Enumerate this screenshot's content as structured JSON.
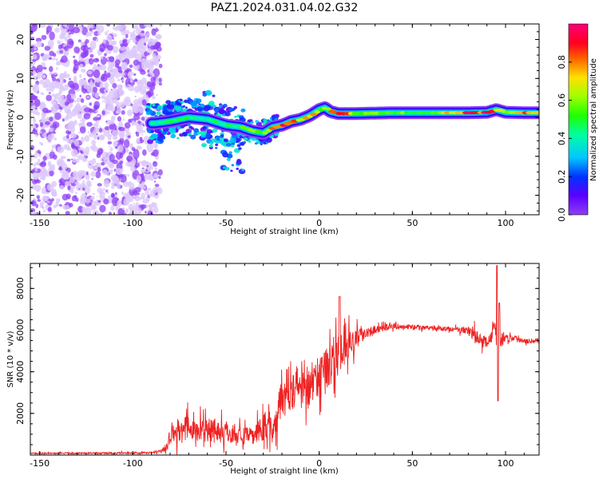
{
  "title": "PAZ1.2024.031.04.02.G32",
  "colors": {
    "snr_line": "#ee2222",
    "scatter_point": "#8f3ff5",
    "scatter_faint": "#dcc8fb",
    "frame": "#000000"
  },
  "chart_data": [
    {
      "type": "heatmap",
      "xlabel": "Height of straight line (km)",
      "ylabel": "Frequency (Hz)",
      "xlim": [
        -155,
        118
      ],
      "ylim": [
        -25,
        24
      ],
      "xticks": [
        -150,
        -100,
        -50,
        0,
        50,
        100
      ],
      "yticks": [
        -20,
        -10,
        0,
        10,
        20
      ],
      "colorbar": {
        "label": "Normalized spectral amplitude",
        "range": [
          0,
          1
        ],
        "ticks": [
          "0.0",
          "0.2",
          "0.4",
          "0.6",
          "0.8"
        ],
        "tick_values": [
          0.0,
          0.2,
          0.4,
          0.6,
          0.8
        ],
        "colormap": "gist_rainbow_r"
      },
      "ridge": {
        "x": [
          -88,
          -80,
          -70,
          -60,
          -50,
          -42,
          -36,
          -30,
          -25,
          -20,
          -15,
          -10,
          -5,
          0,
          3,
          6,
          10,
          20,
          40,
          60,
          80,
          90,
          95,
          100,
          110,
          118
        ],
        "frequency": [
          -1.5,
          -1.0,
          0.0,
          -0.5,
          -2.0,
          -2.5,
          -3.5,
          -4.0,
          -2.5,
          -2.0,
          -1.0,
          -0.5,
          0.5,
          2.0,
          2.5,
          1.5,
          1.0,
          1.0,
          1.2,
          1.2,
          1.2,
          1.3,
          2.0,
          1.3,
          1.2,
          1.2
        ],
        "amplitude": [
          0.4,
          0.45,
          0.45,
          0.4,
          0.45,
          0.5,
          0.55,
          0.6,
          0.75,
          0.95,
          0.8,
          0.7,
          0.85,
          0.6,
          0.55,
          0.9,
          0.9,
          0.55,
          0.55,
          0.55,
          0.85,
          0.9,
          0.7,
          0.6,
          0.9,
          0.6
        ]
      }
    },
    {
      "type": "line",
      "xlabel": "Height of straight line (km)",
      "ylabel": "SNR (10 * v/v)",
      "xlim": [
        -155,
        118
      ],
      "ylim": [
        0,
        9200
      ],
      "xticks": [
        -150,
        -100,
        -50,
        0,
        50,
        100
      ],
      "yticks": [
        2000,
        4000,
        6000,
        8000
      ],
      "series": [
        {
          "x": [
            -155,
            -120,
            -100,
            -90,
            -85,
            -82,
            -80,
            -78,
            -75,
            -70,
            -65,
            -60,
            -55,
            -50,
            -45,
            -40,
            -35,
            -30,
            -27,
            -25,
            -22,
            -20,
            -18,
            -15,
            -12,
            -10,
            -8,
            -5,
            -2,
            0,
            2,
            5,
            8,
            10,
            12,
            14,
            16,
            18,
            20,
            25,
            30,
            35,
            40,
            45,
            50,
            60,
            70,
            75,
            80,
            82,
            85,
            88,
            90,
            92,
            94,
            95,
            96,
            97,
            98,
            100,
            105,
            110,
            115,
            118
          ],
          "y": [
            80,
            90,
            100,
            110,
            200,
            400,
            1000,
            1200,
            1100,
            1300,
            1150,
            1300,
            1200,
            1100,
            1050,
            900,
            950,
            1300,
            1700,
            900,
            2500,
            3000,
            2900,
            3400,
            3300,
            3200,
            3500,
            3200,
            3800,
            3700,
            4300,
            4200,
            4600,
            4700,
            5000,
            4900,
            5400,
            5300,
            5600,
            5900,
            6050,
            6100,
            6200,
            6150,
            6150,
            6100,
            6050,
            6000,
            6000,
            5800,
            5600,
            5500,
            5400,
            5600,
            6200,
            5500,
            5800,
            5700,
            5600,
            5650,
            5600,
            5500,
            5500,
            5450
          ],
          "spread": [
            40,
            50,
            60,
            60,
            100,
            300,
            600,
            800,
            700,
            900,
            700,
            850,
            800,
            700,
            650,
            500,
            550,
            900,
            1100,
            600,
            1400,
            1500,
            1300,
            1500,
            1400,
            1400,
            1400,
            1300,
            1300,
            1300,
            1300,
            1200,
            1300,
            1200,
            1200,
            1000,
            900,
            800,
            600,
            350,
            250,
            200,
            180,
            150,
            150,
            130,
            130,
            200,
            250,
            500,
            400,
            400,
            300,
            300,
            400,
            2000,
            1300,
            900,
            500,
            250,
            200,
            180,
            150,
            150
          ]
        }
      ]
    }
  ]
}
